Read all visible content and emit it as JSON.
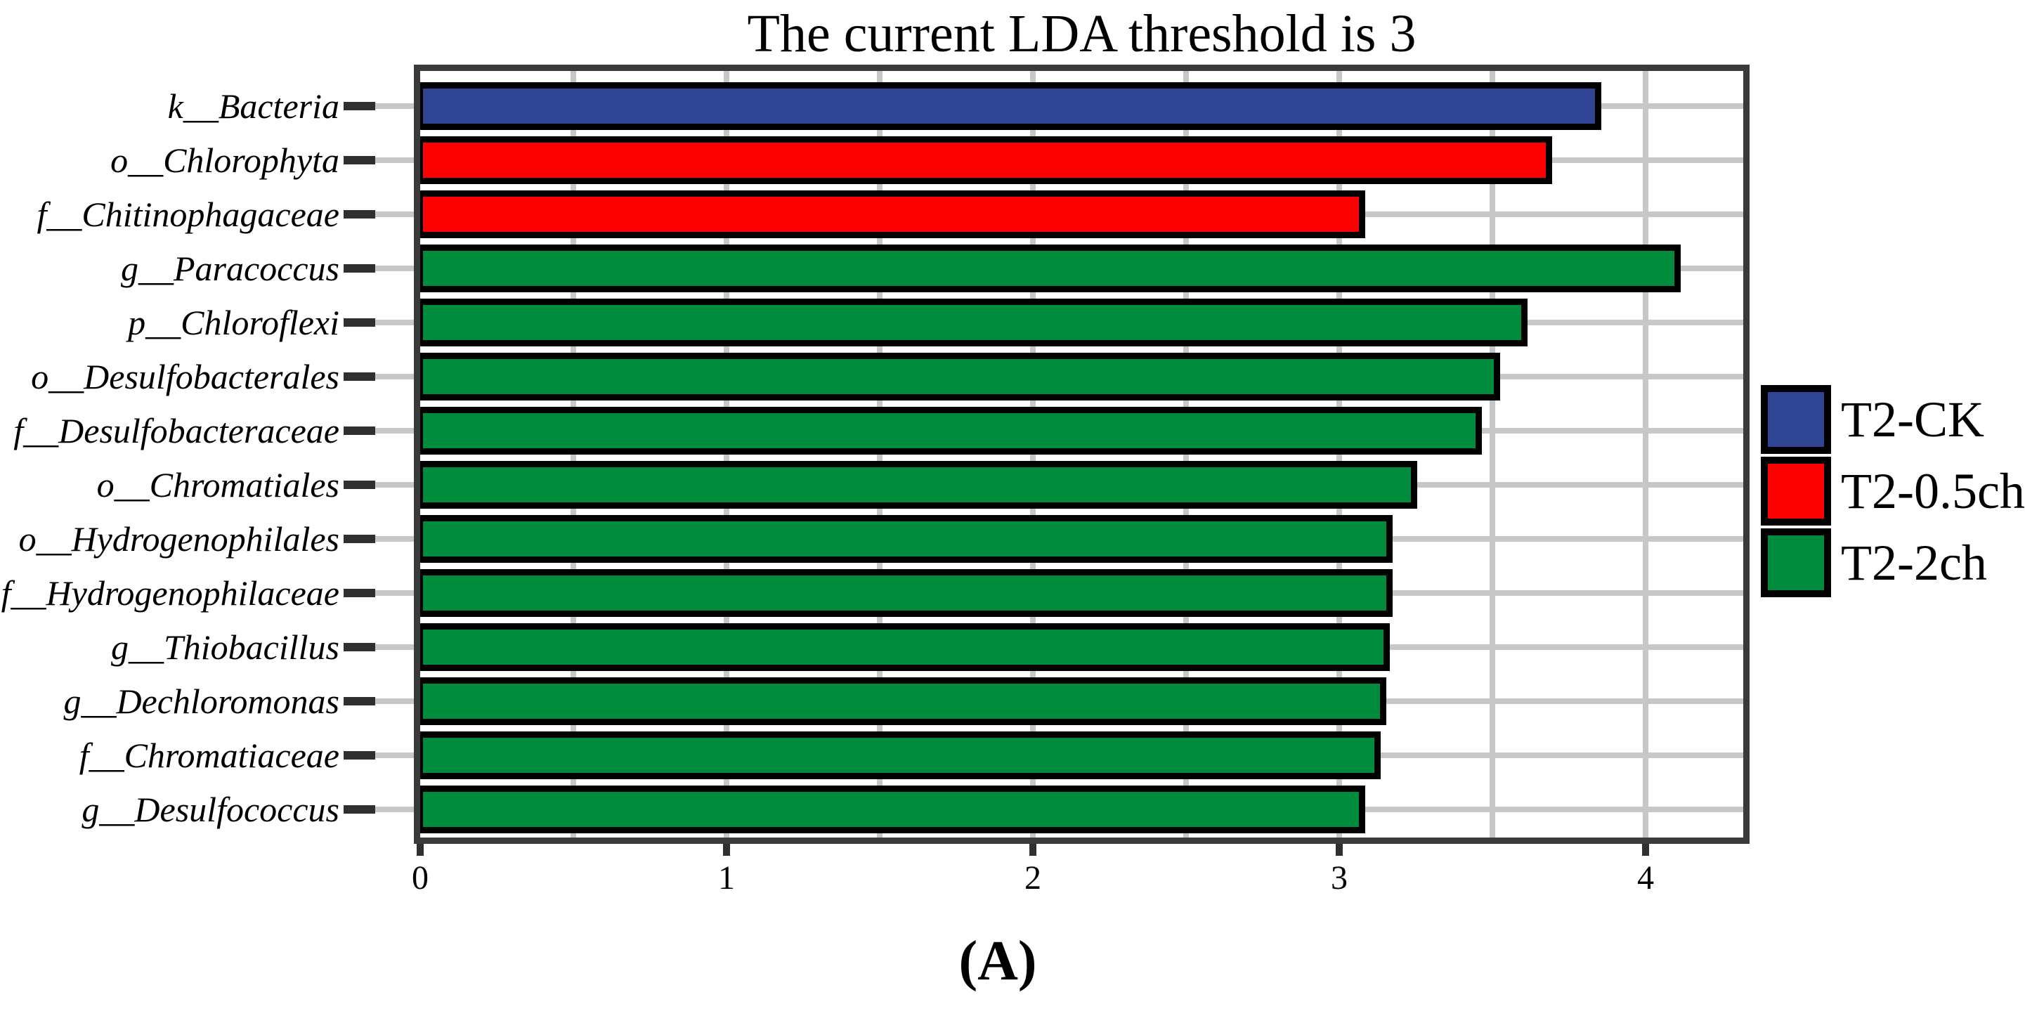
{
  "figure": {
    "title": "The current LDA threshold is 3",
    "caption": "(A)"
  },
  "legend": {
    "position": "right",
    "items": [
      {
        "label": "T2-CK",
        "color": "#2f4594"
      },
      {
        "label": "T2-0.5ch",
        "color": "#fd0000"
      },
      {
        "label": "T2-2ch",
        "color": "#008b3d"
      }
    ]
  },
  "chart_data": {
    "type": "bar",
    "orientation": "horizontal",
    "title": "The current LDA threshold is 3",
    "xlabel": "",
    "ylabel": "",
    "xlim": [
      0,
      4.32
    ],
    "xticks": [
      0,
      1,
      2,
      3,
      4
    ],
    "xtick_labels": [
      "0",
      "1",
      "2",
      "3",
      "4"
    ],
    "minor_gridline_step": 0.5,
    "grid": true,
    "legend_position": "right",
    "bar_border_color": "#000000",
    "frame_color": "#3a3a3a",
    "gridline_color": "#c7c7c7",
    "bars": [
      {
        "taxon": "k__Bacteria",
        "value": 3.85,
        "group": "T2-CK"
      },
      {
        "taxon": "o__Chlorophyta",
        "value": 3.69,
        "group": "T2-0.5ch"
      },
      {
        "taxon": "f__Chitinophagaceae",
        "value": 3.08,
        "group": "T2-0.5ch"
      },
      {
        "taxon": "g__Paracoccus",
        "value": 4.11,
        "group": "T2-2ch"
      },
      {
        "taxon": "p__Chloroflexi",
        "value": 3.61,
        "group": "T2-2ch"
      },
      {
        "taxon": "o__Desulfobacterales",
        "value": 3.52,
        "group": "T2-2ch"
      },
      {
        "taxon": "f__Desulfobacteraceae",
        "value": 3.46,
        "group": "T2-2ch"
      },
      {
        "taxon": "o__Chromatiales",
        "value": 3.25,
        "group": "T2-2ch"
      },
      {
        "taxon": "o__Hydrogenophilales",
        "value": 3.17,
        "group": "T2-2ch"
      },
      {
        "taxon": "f__Hydrogenophilaceae",
        "value": 3.17,
        "group": "T2-2ch"
      },
      {
        "taxon": "g__Thiobacillus",
        "value": 3.16,
        "group": "T2-2ch"
      },
      {
        "taxon": "g__Dechloromonas",
        "value": 3.15,
        "group": "T2-2ch"
      },
      {
        "taxon": "f__Chromatiaceae",
        "value": 3.13,
        "group": "T2-2ch"
      },
      {
        "taxon": "g__Desulfococcus",
        "value": 3.08,
        "group": "T2-2ch"
      }
    ]
  }
}
